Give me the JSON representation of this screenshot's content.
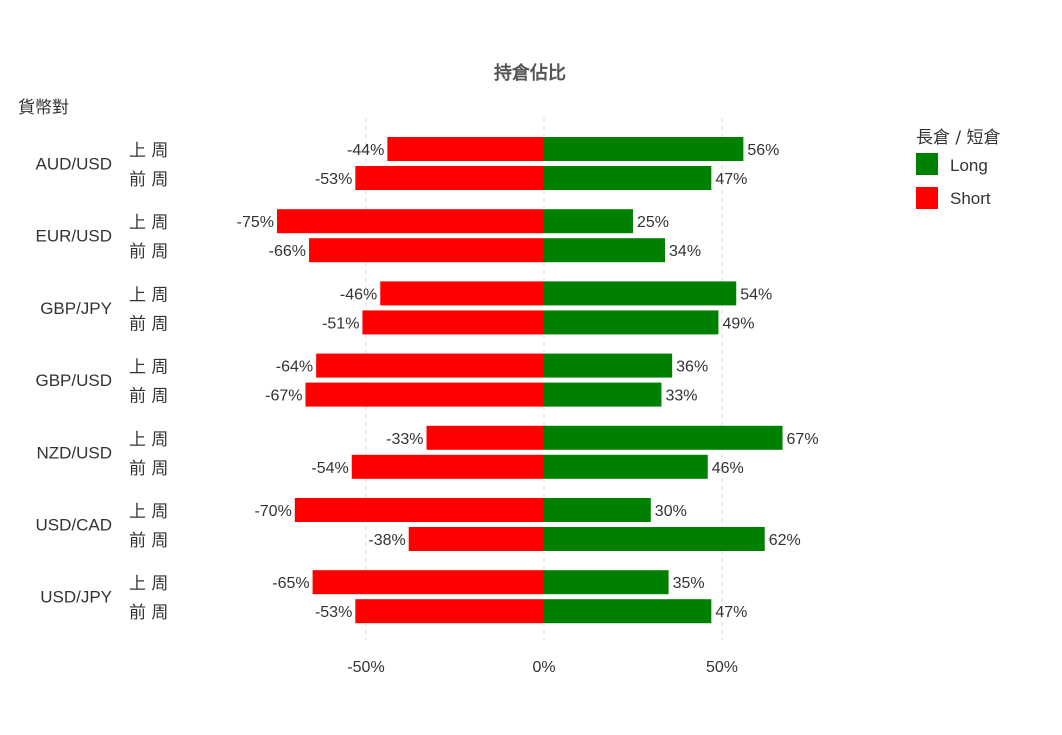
{
  "chart_data": {
    "type": "bar",
    "orientation": "horizontal-diverging",
    "title": "持倉佔比",
    "ylabel": "貨幣對",
    "xlim": [
      -100,
      100
    ],
    "x_ticks": [
      {
        "value": -50,
        "label": "-50%"
      },
      {
        "value": 0,
        "label": "0%"
      },
      {
        "value": 50,
        "label": "50%"
      }
    ],
    "grid": true,
    "legend": {
      "title": "長倉 / 短倉",
      "placement": "top-right",
      "entries": [
        {
          "key": "long",
          "label": "Long",
          "color": "#008000"
        },
        {
          "key": "short",
          "label": "Short",
          "color": "#ff0000"
        }
      ]
    },
    "week_labels": [
      "上 周",
      "前 周"
    ],
    "groups": [
      {
        "pair": "AUD/USD",
        "rows": [
          {
            "week": "上 周",
            "short": -44,
            "short_label": "-44%",
            "long": 56,
            "long_label": "56%"
          },
          {
            "week": "前 周",
            "short": -53,
            "short_label": "-53%",
            "long": 47,
            "long_label": "47%"
          }
        ]
      },
      {
        "pair": "EUR/USD",
        "rows": [
          {
            "week": "上 周",
            "short": -75,
            "short_label": "-75%",
            "long": 25,
            "long_label": "25%"
          },
          {
            "week": "前 周",
            "short": -66,
            "short_label": "-66%",
            "long": 34,
            "long_label": "34%"
          }
        ]
      },
      {
        "pair": "GBP/JPY",
        "rows": [
          {
            "week": "上 周",
            "short": -46,
            "short_label": "-46%",
            "long": 54,
            "long_label": "54%"
          },
          {
            "week": "前 周",
            "short": -51,
            "short_label": "-51%",
            "long": 49,
            "long_label": "49%"
          }
        ]
      },
      {
        "pair": "GBP/USD",
        "rows": [
          {
            "week": "上 周",
            "short": -64,
            "short_label": "-64%",
            "long": 36,
            "long_label": "36%"
          },
          {
            "week": "前 周",
            "short": -67,
            "short_label": "-67%",
            "long": 33,
            "long_label": "33%"
          }
        ]
      },
      {
        "pair": "NZD/USD",
        "rows": [
          {
            "week": "上 周",
            "short": -33,
            "short_label": "-33%",
            "long": 67,
            "long_label": "67%"
          },
          {
            "week": "前 周",
            "short": -54,
            "short_label": "-54%",
            "long": 46,
            "long_label": "46%"
          }
        ]
      },
      {
        "pair": "USD/CAD",
        "rows": [
          {
            "week": "上 周",
            "short": -70,
            "short_label": "-70%",
            "long": 30,
            "long_label": "30%"
          },
          {
            "week": "前 周",
            "short": -38,
            "short_label": "-38%",
            "long": 62,
            "long_label": "62%"
          }
        ]
      },
      {
        "pair": "USD/JPY",
        "rows": [
          {
            "week": "上 周",
            "short": -65,
            "short_label": "-65%",
            "long": 35,
            "long_label": "35%"
          },
          {
            "week": "前 周",
            "short": -53,
            "short_label": "-53%",
            "long": 47,
            "long_label": "47%"
          }
        ]
      }
    ]
  }
}
